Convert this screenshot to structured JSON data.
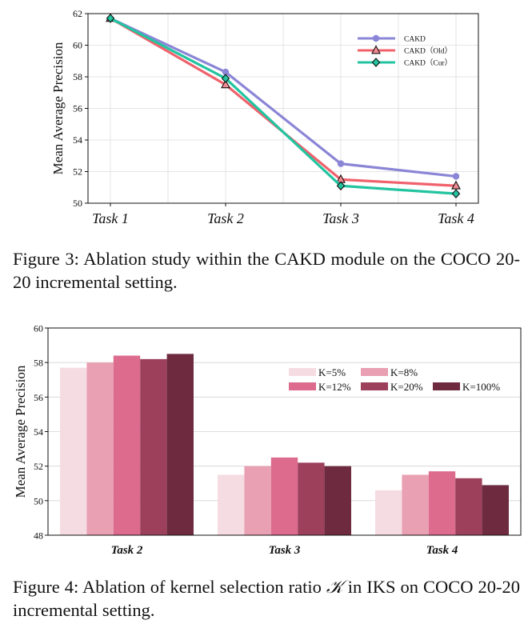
{
  "chart_data": [
    {
      "type": "line",
      "ylabel": "Mean Average Precision",
      "xlabel": "",
      "categories": [
        "Task 1",
        "Task 2",
        "Task 3",
        "Task 4"
      ],
      "ylim": [
        50,
        62
      ],
      "yticks": [
        50,
        52,
        54,
        56,
        58,
        60,
        62
      ],
      "grid": true,
      "legend_position": "top-right",
      "series": [
        {
          "name": "CAKD",
          "color": "#8B85D6",
          "marker": "circle",
          "values": [
            61.7,
            58.3,
            52.5,
            51.7
          ]
        },
        {
          "name": "CAKD（Old）",
          "color": "#F0616C",
          "marker": "triangle",
          "values": [
            61.7,
            57.5,
            51.5,
            51.1
          ]
        },
        {
          "name": "CAKD（Cur）",
          "color": "#22C4A0",
          "marker": "diamond",
          "values": [
            61.7,
            57.9,
            51.1,
            50.6
          ]
        }
      ]
    },
    {
      "type": "bar",
      "ylabel": "Mean Average Precision",
      "xlabel": "",
      "categories": [
        "Task 2",
        "Task 3",
        "Task 4"
      ],
      "ylim": [
        48,
        60
      ],
      "yticks": [
        48,
        50,
        52,
        54,
        56,
        58,
        60
      ],
      "grid": true,
      "legend_position": "center-right",
      "series": [
        {
          "name": "K=5%",
          "color": "#F5DCE3",
          "values": [
            57.7,
            51.5,
            50.6
          ]
        },
        {
          "name": "K=8%",
          "color": "#E9A0B3",
          "values": [
            58.0,
            52.0,
            51.5
          ]
        },
        {
          "name": "K=12%",
          "color": "#DC6B8E",
          "values": [
            58.4,
            52.5,
            51.7
          ]
        },
        {
          "name": "K=20%",
          "color": "#9C405C",
          "values": [
            58.2,
            52.2,
            51.3
          ]
        },
        {
          "name": "K=100%",
          "color": "#6E2B40",
          "values": [
            58.5,
            52.0,
            50.9
          ]
        }
      ]
    }
  ],
  "captions": {
    "fig3": "Figure 3: Ablation study within the CAKD module on the COCO 20-20 incremental setting.",
    "fig4_pre": "Figure 4: Ablation of kernel selection ratio ",
    "fig4_sym": "𝒦",
    "fig4_post": " in IKS on COCO 20-20 incremental setting."
  }
}
